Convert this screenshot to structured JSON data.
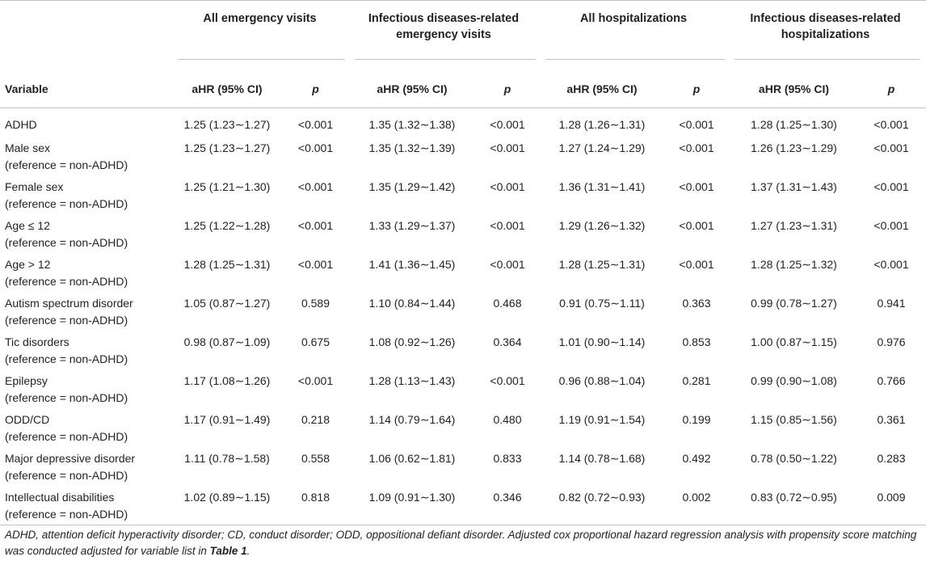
{
  "table": {
    "groups": [
      "All emergency visits",
      "Infectious diseases-related emergency visits",
      "All hospitalizations",
      "Infectious diseases-related hospitalizations"
    ],
    "variable_header": "Variable",
    "ahr_header": "aHR (95% CI)",
    "p_header": "p",
    "rows": [
      {
        "var1": "ADHD",
        "var2": "",
        "c": [
          "1.25 (1.23∼1.27)",
          "<0.001",
          "1.35 (1.32∼1.38)",
          "<0.001",
          "1.28 (1.26∼1.31)",
          "<0.001",
          "1.28 (1.25∼1.30)",
          "<0.001"
        ]
      },
      {
        "var1": "Male sex",
        "var2": "(reference = non-ADHD)",
        "c": [
          "1.25 (1.23∼1.27)",
          "<0.001",
          "1.35 (1.32∼1.39)",
          "<0.001",
          "1.27 (1.24∼1.29)",
          "<0.001",
          "1.26 (1.23∼1.29)",
          "<0.001"
        ]
      },
      {
        "var1": "Female sex",
        "var2": "(reference = non-ADHD)",
        "c": [
          "1.25 (1.21∼1.30)",
          "<0.001",
          "1.35 (1.29∼1.42)",
          "<0.001",
          "1.36 (1.31∼1.41)",
          "<0.001",
          "1.37 (1.31∼1.43)",
          "<0.001"
        ]
      },
      {
        "var1": "Age ≤ 12",
        "var2": "(reference = non-ADHD)",
        "c": [
          "1.25 (1.22∼1.28)",
          "<0.001",
          "1.33 (1.29∼1.37)",
          "<0.001",
          "1.29 (1.26∼1.32)",
          "<0.001",
          "1.27 (1.23∼1.31)",
          "<0.001"
        ]
      },
      {
        "var1": "Age > 12",
        "var2": "(reference = non-ADHD)",
        "c": [
          "1.28 (1.25∼1.31)",
          "<0.001",
          "1.41 (1.36∼1.45)",
          "<0.001",
          "1.28 (1.25∼1.31)",
          "<0.001",
          "1.28 (1.25∼1.32)",
          "<0.001"
        ]
      },
      {
        "var1": "Autism spectrum disorder",
        "var2": "(reference = non-ADHD)",
        "c": [
          "1.05 (0.87∼1.27)",
          "0.589",
          "1.10 (0.84∼1.44)",
          "0.468",
          "0.91 (0.75∼1.11)",
          "0.363",
          "0.99 (0.78∼1.27)",
          "0.941"
        ]
      },
      {
        "var1": "Tic disorders",
        "var2": "(reference = non-ADHD)",
        "c": [
          "0.98 (0.87∼1.09)",
          "0.675",
          "1.08 (0.92∼1.26)",
          "0.364",
          "1.01 (0.90∼1.14)",
          "0.853",
          "1.00 (0.87∼1.15)",
          "0.976"
        ]
      },
      {
        "var1": "Epilepsy",
        "var2": "(reference = non-ADHD)",
        "c": [
          "1.17 (1.08∼1.26)",
          "<0.001",
          "1.28 (1.13∼1.43)",
          "<0.001",
          "0.96 (0.88∼1.04)",
          "0.281",
          "0.99 (0.90∼1.08)",
          "0.766"
        ]
      },
      {
        "var1": "ODD/CD",
        "var2": "(reference = non-ADHD)",
        "c": [
          "1.17 (0.91∼1.49)",
          "0.218",
          "1.14 (0.79∼1.64)",
          "0.480",
          "1.19 (0.91∼1.54)",
          "0.199",
          "1.15 (0.85∼1.56)",
          "0.361"
        ]
      },
      {
        "var1": "Major depressive disorder",
        "var2": "(reference = non-ADHD)",
        "c": [
          "1.11 (0.78∼1.58)",
          "0.558",
          "1.06 (0.62∼1.81)",
          "0.833",
          "1.14 (0.78∼1.68)",
          "0.492",
          "0.78 (0.50∼1.22)",
          "0.283"
        ]
      },
      {
        "var1": "Intellectual disabilities",
        "var2": "(reference = non-ADHD)",
        "c": [
          "1.02 (0.89∼1.15)",
          "0.818",
          "1.09 (0.91∼1.30)",
          "0.346",
          "0.82 (0.72∼0.93)",
          "0.002",
          "0.83 (0.72∼0.95)",
          "0.009"
        ]
      }
    ]
  },
  "footnote": {
    "text": "ADHD, attention deficit hyperactivity disorder; CD, conduct disorder; ODD, oppositional defiant disorder. Adjusted cox proportional hazard regression analysis with propensity score matching was conducted adjusted for variable list in ",
    "ref": "Table 1",
    "end": "."
  }
}
